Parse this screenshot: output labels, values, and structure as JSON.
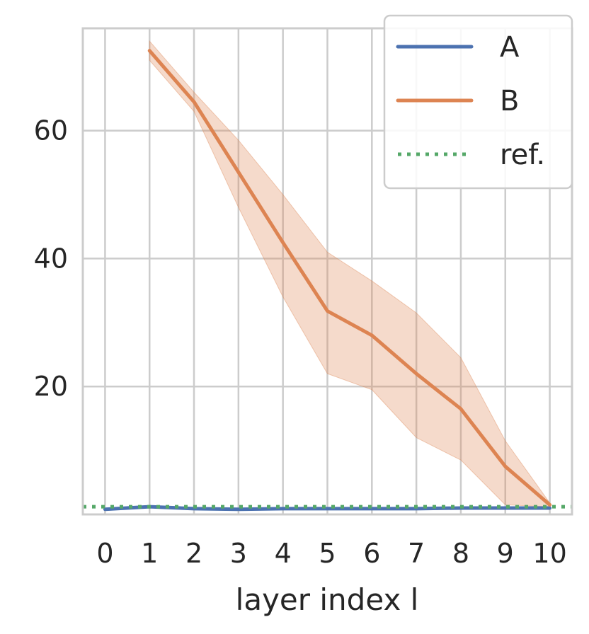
{
  "chart_data": {
    "type": "line",
    "title": "",
    "xlabel": "layer index l",
    "ylabel": "",
    "x": [
      0,
      1,
      2,
      3,
      4,
      5,
      6,
      7,
      8,
      9,
      10
    ],
    "x_ticks": [
      "0",
      "1",
      "2",
      "3",
      "4",
      "5",
      "6",
      "7",
      "8",
      "9",
      "10"
    ],
    "y_ticks": [
      20,
      40,
      60
    ],
    "xlim": [
      -0.5,
      10.5
    ],
    "ylim": [
      0,
      76
    ],
    "grid": true,
    "legend_position": "top-right",
    "series": [
      {
        "name": "A",
        "color": "#4c72b0",
        "style": "solid",
        "values": [
          0.8,
          1.2,
          0.9,
          0.8,
          0.9,
          0.9,
          0.9,
          0.9,
          1.0,
          1.0,
          1.0
        ]
      },
      {
        "name": "B",
        "color": "#dd8452",
        "style": "solid",
        "values": [
          null,
          72.5,
          64.5,
          53.5,
          42.5,
          31.8,
          28.0,
          22.0,
          16.5,
          7.5,
          1.5
        ],
        "band_lower": [
          null,
          71.0,
          63.0,
          48.0,
          34.0,
          22.0,
          19.5,
          12.0,
          8.5,
          1.5,
          1.2
        ],
        "band_upper": [
          null,
          74.0,
          66.0,
          58.5,
          50.0,
          41.0,
          36.5,
          31.5,
          24.5,
          11.5,
          1.8
        ]
      },
      {
        "name": "ref.",
        "color": "#55a868",
        "style": "dotted",
        "values": [
          1.2,
          1.2,
          1.2,
          1.2,
          1.2,
          1.2,
          1.2,
          1.2,
          1.2,
          1.2,
          1.2
        ]
      }
    ]
  }
}
